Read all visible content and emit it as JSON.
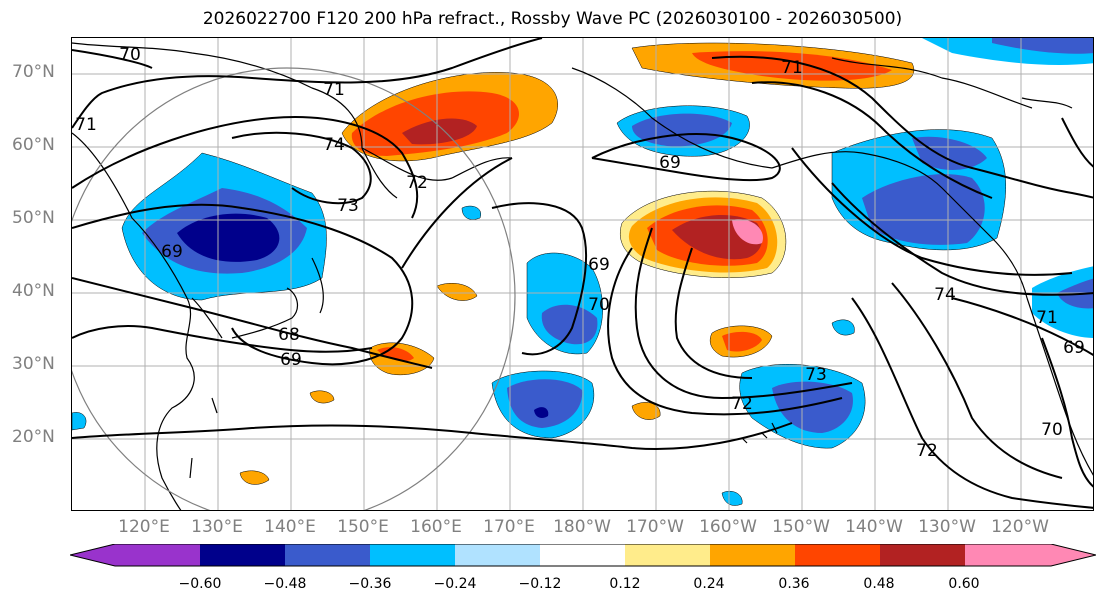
{
  "title": "2026022700 F120 200 hPa refract., Rossby Wave PC (2026030100 - 2026030500)",
  "lat_labels": [
    "70°N",
    "60°N",
    "50°N",
    "40°N",
    "30°N",
    "20°N"
  ],
  "lon_labels": [
    "120°E",
    "130°E",
    "140°E",
    "150°E",
    "160°E",
    "170°E",
    "180°W",
    "170°W",
    "160°W",
    "150°W",
    "140°W",
    "130°W",
    "120°W"
  ],
  "contour_labels": [
    "70",
    "71",
    "74",
    "73",
    "72",
    "69",
    "69",
    "70",
    "68",
    "69",
    "71",
    "73",
    "72",
    "74",
    "72",
    "70",
    "71",
    "69",
    "71",
    "69"
  ],
  "colorbar": {
    "tick_labels": [
      "−0.60",
      "−0.48",
      "−0.36",
      "−0.24",
      "−0.12",
      "0.12",
      "0.24",
      "0.36",
      "0.48",
      "0.60"
    ],
    "colors": [
      "#9933cc",
      "#00008b",
      "#3a5bcc",
      "#00bfff",
      "#b0e2ff",
      "#ffffff",
      "#ffec8b",
      "#ffa500",
      "#ff4500",
      "#b22222",
      "#ff88b4"
    ]
  },
  "colors": {
    "contour": "#000000",
    "coast": "#000000",
    "grid": "#b0b0b0",
    "circle": "#808080",
    "axis_label": "#808080"
  }
}
